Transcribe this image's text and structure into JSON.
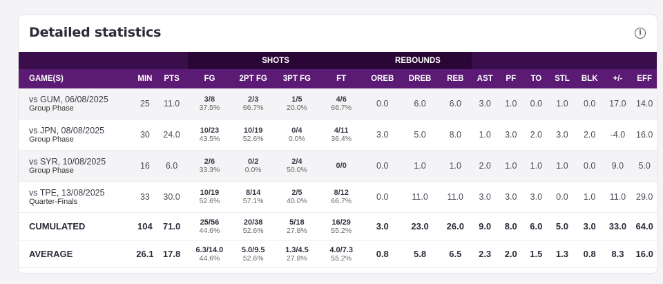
{
  "title": "Detailed statistics",
  "groups": {
    "shots": "SHOTS",
    "rebounds": "REBOUNDS"
  },
  "columns": [
    "GAME(S)",
    "MIN",
    "PTS",
    "FG",
    "2PT FG",
    "3PT FG",
    "FT",
    "OREB",
    "DREB",
    "REB",
    "AST",
    "PF",
    "TO",
    "STL",
    "BLK",
    "+/-",
    "EFF"
  ],
  "games": [
    {
      "opponent": "vs GUM, 06/08/2025",
      "phase": "Group Phase",
      "min": "25",
      "pts": "11.0",
      "fg": "3/8",
      "fg_pct": "37.5%",
      "fg2": "2/3",
      "fg2_pct": "66.7%",
      "fg3": "1/5",
      "fg3_pct": "20.0%",
      "ft": "4/6",
      "ft_pct": "66.7%",
      "oreb": "0.0",
      "dreb": "6.0",
      "reb": "6.0",
      "ast": "3.0",
      "pf": "1.0",
      "to": "0.0",
      "stl": "1.0",
      "blk": "0.0",
      "pm": "17.0",
      "eff": "14.0"
    },
    {
      "opponent": "vs JPN, 08/08/2025",
      "phase": "Group Phase",
      "min": "30",
      "pts": "24.0",
      "fg": "10/23",
      "fg_pct": "43.5%",
      "fg2": "10/19",
      "fg2_pct": "52.6%",
      "fg3": "0/4",
      "fg3_pct": "0.0%",
      "ft": "4/11",
      "ft_pct": "36.4%",
      "oreb": "3.0",
      "dreb": "5.0",
      "reb": "8.0",
      "ast": "1.0",
      "pf": "3.0",
      "to": "2.0",
      "stl": "3.0",
      "blk": "2.0",
      "pm": "-4.0",
      "eff": "16.0"
    },
    {
      "opponent": "vs SYR, 10/08/2025",
      "phase": "Group Phase",
      "min": "16",
      "pts": "6.0",
      "fg": "2/6",
      "fg_pct": "33.3%",
      "fg2": "0/2",
      "fg2_pct": "0.0%",
      "fg3": "2/4",
      "fg3_pct": "50.0%",
      "ft": "0/0",
      "ft_pct": "",
      "oreb": "0.0",
      "dreb": "1.0",
      "reb": "1.0",
      "ast": "2.0",
      "pf": "1.0",
      "to": "1.0",
      "stl": "1.0",
      "blk": "0.0",
      "pm": "9.0",
      "eff": "5.0"
    },
    {
      "opponent": "vs TPE, 13/08/2025",
      "phase": "Quarter-Finals",
      "min": "33",
      "pts": "30.0",
      "fg": "10/19",
      "fg_pct": "52.6%",
      "fg2": "8/14",
      "fg2_pct": "57.1%",
      "fg3": "2/5",
      "fg3_pct": "40.0%",
      "ft": "8/12",
      "ft_pct": "66.7%",
      "oreb": "0.0",
      "dreb": "11.0",
      "reb": "11.0",
      "ast": "3.0",
      "pf": "3.0",
      "to": "3.0",
      "stl": "0.0",
      "blk": "1.0",
      "pm": "11.0",
      "eff": "29.0"
    }
  ],
  "cumulated": {
    "label": "CUMULATED",
    "min": "104",
    "pts": "71.0",
    "fg": "25/56",
    "fg_pct": "44.6%",
    "fg2": "20/38",
    "fg2_pct": "52.6%",
    "fg3": "5/18",
    "fg3_pct": "27.8%",
    "ft": "16/29",
    "ft_pct": "55.2%",
    "oreb": "3.0",
    "dreb": "23.0",
    "reb": "26.0",
    "ast": "9.0",
    "pf": "8.0",
    "to": "6.0",
    "stl": "5.0",
    "blk": "3.0",
    "pm": "33.0",
    "eff": "64.0"
  },
  "average": {
    "label": "AVERAGE",
    "min": "26.1",
    "pts": "17.8",
    "fg": "6.3/14.0",
    "fg_pct": "44.6%",
    "fg2": "5.0/9.5",
    "fg2_pct": "52.6%",
    "fg3": "1.3/4.5",
    "fg3_pct": "27.8%",
    "ft": "4.0/7.3",
    "ft_pct": "55.2%",
    "oreb": "0.8",
    "dreb": "5.8",
    "reb": "6.5",
    "ast": "2.3",
    "pf": "2.0",
    "to": "1.5",
    "stl": "1.3",
    "blk": "0.8",
    "pm": "8.3",
    "eff": "16.0"
  }
}
